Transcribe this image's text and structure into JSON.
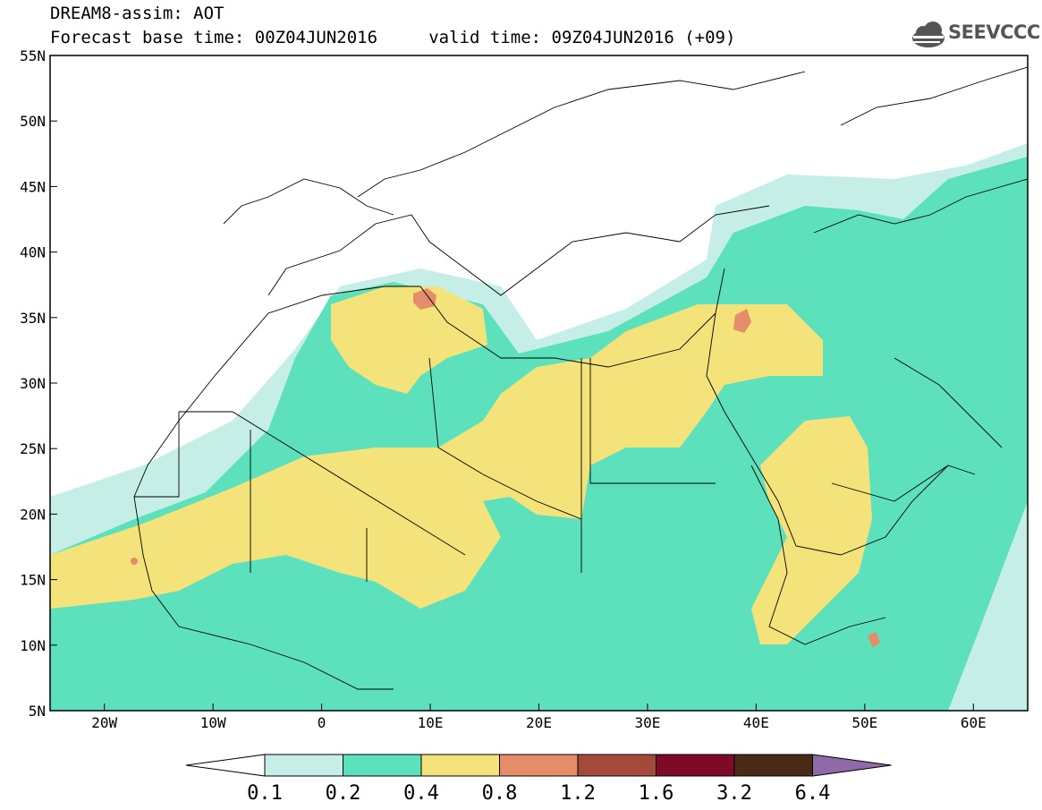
{
  "header": {
    "title_line1": "DREAM8-assim: AOT",
    "title_line2": "Forecast base time: 00Z04JUN2016     valid time: 09Z04JUN2016 (+09)",
    "logo_text": "SEEVCCC"
  },
  "map": {
    "lat_labels": [
      "55N",
      "50N",
      "45N",
      "40N",
      "35N",
      "30N",
      "25N",
      "20N",
      "15N",
      "10N",
      "5N"
    ],
    "lon_labels": [
      "20W",
      "10W",
      "0",
      "10E",
      "20E",
      "30E",
      "40E",
      "50E",
      "60E"
    ],
    "colors": {
      "c01": "#c4eee6",
      "c02": "#5de0bc",
      "c04": "#f4e27a",
      "c08": "#e58c6a",
      "c12": "#a54a3a",
      "c16": "#7e0a28",
      "c32": "#4a2a17",
      "c64": "#8e6aa8"
    }
  },
  "colorbar": {
    "labels": [
      "0.1",
      "0.2",
      "0.4",
      "0.8",
      "1.2",
      "1.6",
      "3.2",
      "6.4"
    ],
    "colors": [
      "#c4eee6",
      "#5de0bc",
      "#f4e27a",
      "#e58c6a",
      "#a54a3a",
      "#7e0a28",
      "#4a2a17",
      "#8e6aa8"
    ]
  }
}
